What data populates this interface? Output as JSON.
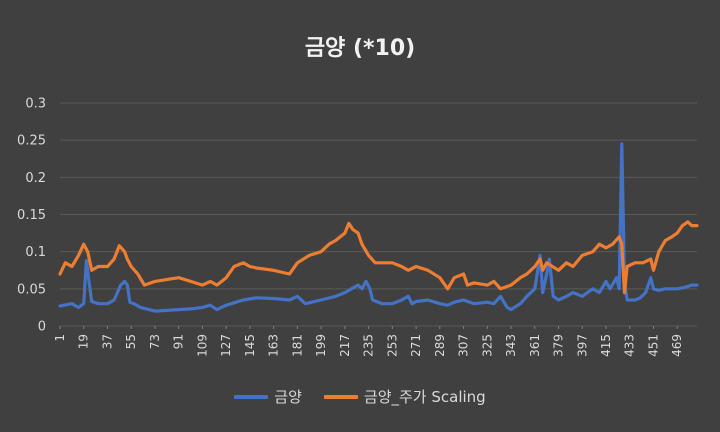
{
  "chart_data": {
    "type": "line",
    "title": "금양 (*10)",
    "xlabel": "",
    "ylabel": "",
    "ylim": [
      0,
      0.3
    ],
    "yticks": [
      "0",
      "0.05",
      "0.1",
      "0.15",
      "0.2",
      "0.25",
      "0.3"
    ],
    "x_range": [
      1,
      484
    ],
    "x_tick_labels": [
      "1",
      "19",
      "37",
      "55",
      "73",
      "91",
      "109",
      "127",
      "145",
      "163",
      "181",
      "199",
      "217",
      "235",
      "253",
      "271",
      "289",
      "307",
      "325",
      "343",
      "361",
      "379",
      "397",
      "415",
      "433",
      "451",
      "469"
    ],
    "grid": true,
    "legend_position": "bottom",
    "series": [
      {
        "name": "금양",
        "color": "#4472C4",
        "points": [
          [
            1,
            0.027
          ],
          [
            10,
            0.03
          ],
          [
            15,
            0.025
          ],
          [
            19,
            0.03
          ],
          [
            21,
            0.088
          ],
          [
            23,
            0.06
          ],
          [
            25,
            0.033
          ],
          [
            30,
            0.03
          ],
          [
            37,
            0.03
          ],
          [
            42,
            0.035
          ],
          [
            47,
            0.055
          ],
          [
            50,
            0.06
          ],
          [
            52,
            0.055
          ],
          [
            54,
            0.032
          ],
          [
            57,
            0.03
          ],
          [
            62,
            0.025
          ],
          [
            73,
            0.02
          ],
          [
            91,
            0.022
          ],
          [
            100,
            0.023
          ],
          [
            109,
            0.025
          ],
          [
            115,
            0.028
          ],
          [
            120,
            0.022
          ],
          [
            127,
            0.028
          ],
          [
            140,
            0.035
          ],
          [
            150,
            0.038
          ],
          [
            163,
            0.037
          ],
          [
            175,
            0.035
          ],
          [
            181,
            0.04
          ],
          [
            187,
            0.03
          ],
          [
            199,
            0.035
          ],
          [
            210,
            0.04
          ],
          [
            217,
            0.045
          ],
          [
            222,
            0.05
          ],
          [
            227,
            0.055
          ],
          [
            230,
            0.05
          ],
          [
            233,
            0.06
          ],
          [
            236,
            0.05
          ],
          [
            238,
            0.035
          ],
          [
            245,
            0.03
          ],
          [
            253,
            0.03
          ],
          [
            260,
            0.035
          ],
          [
            265,
            0.04
          ],
          [
            268,
            0.03
          ],
          [
            271,
            0.033
          ],
          [
            280,
            0.035
          ],
          [
            289,
            0.03
          ],
          [
            295,
            0.028
          ],
          [
            300,
            0.032
          ],
          [
            307,
            0.035
          ],
          [
            315,
            0.03
          ],
          [
            325,
            0.032
          ],
          [
            330,
            0.03
          ],
          [
            335,
            0.04
          ],
          [
            340,
            0.025
          ],
          [
            343,
            0.022
          ],
          [
            350,
            0.03
          ],
          [
            355,
            0.04
          ],
          [
            361,
            0.05
          ],
          [
            365,
            0.095
          ],
          [
            367,
            0.045
          ],
          [
            370,
            0.07
          ],
          [
            372,
            0.09
          ],
          [
            375,
            0.04
          ],
          [
            379,
            0.035
          ],
          [
            385,
            0.04
          ],
          [
            390,
            0.045
          ],
          [
            397,
            0.04
          ],
          [
            405,
            0.05
          ],
          [
            410,
            0.045
          ],
          [
            415,
            0.06
          ],
          [
            418,
            0.05
          ],
          [
            423,
            0.065
          ],
          [
            425,
            0.05
          ],
          [
            427,
            0.245
          ],
          [
            429,
            0.06
          ],
          [
            431,
            0.035
          ],
          [
            437,
            0.035
          ],
          [
            441,
            0.038
          ],
          [
            445,
            0.045
          ],
          [
            449,
            0.065
          ],
          [
            451,
            0.05
          ],
          [
            455,
            0.048
          ],
          [
            460,
            0.05
          ],
          [
            469,
            0.05
          ],
          [
            475,
            0.052
          ],
          [
            480,
            0.055
          ],
          [
            484,
            0.055
          ]
        ]
      },
      {
        "name": "금양_주가 Scaling",
        "color": "#ED7D31",
        "points": [
          [
            1,
            0.07
          ],
          [
            5,
            0.085
          ],
          [
            10,
            0.08
          ],
          [
            15,
            0.095
          ],
          [
            19,
            0.11
          ],
          [
            22,
            0.1
          ],
          [
            25,
            0.075
          ],
          [
            30,
            0.08
          ],
          [
            37,
            0.08
          ],
          [
            42,
            0.09
          ],
          [
            46,
            0.108
          ],
          [
            50,
            0.1
          ],
          [
            52,
            0.09
          ],
          [
            55,
            0.08
          ],
          [
            60,
            0.07
          ],
          [
            65,
            0.055
          ],
          [
            73,
            0.06
          ],
          [
            80,
            0.062
          ],
          [
            91,
            0.065
          ],
          [
            100,
            0.06
          ],
          [
            109,
            0.055
          ],
          [
            115,
            0.06
          ],
          [
            120,
            0.055
          ],
          [
            127,
            0.065
          ],
          [
            133,
            0.08
          ],
          [
            140,
            0.085
          ],
          [
            145,
            0.08
          ],
          [
            150,
            0.078
          ],
          [
            163,
            0.075
          ],
          [
            170,
            0.072
          ],
          [
            175,
            0.07
          ],
          [
            181,
            0.085
          ],
          [
            190,
            0.095
          ],
          [
            199,
            0.1
          ],
          [
            205,
            0.11
          ],
          [
            210,
            0.115
          ],
          [
            217,
            0.125
          ],
          [
            220,
            0.138
          ],
          [
            223,
            0.13
          ],
          [
            227,
            0.125
          ],
          [
            230,
            0.11
          ],
          [
            235,
            0.095
          ],
          [
            240,
            0.085
          ],
          [
            253,
            0.085
          ],
          [
            260,
            0.08
          ],
          [
            265,
            0.075
          ],
          [
            271,
            0.08
          ],
          [
            280,
            0.075
          ],
          [
            289,
            0.065
          ],
          [
            295,
            0.05
          ],
          [
            300,
            0.065
          ],
          [
            307,
            0.07
          ],
          [
            310,
            0.055
          ],
          [
            315,
            0.058
          ],
          [
            325,
            0.055
          ],
          [
            330,
            0.06
          ],
          [
            335,
            0.05
          ],
          [
            343,
            0.055
          ],
          [
            350,
            0.065
          ],
          [
            355,
            0.07
          ],
          [
            361,
            0.08
          ],
          [
            365,
            0.09
          ],
          [
            367,
            0.075
          ],
          [
            370,
            0.085
          ],
          [
            379,
            0.075
          ],
          [
            385,
            0.085
          ],
          [
            390,
            0.08
          ],
          [
            397,
            0.095
          ],
          [
            405,
            0.1
          ],
          [
            410,
            0.11
          ],
          [
            415,
            0.105
          ],
          [
            420,
            0.11
          ],
          [
            425,
            0.12
          ],
          [
            427,
            0.11
          ],
          [
            429,
            0.045
          ],
          [
            431,
            0.08
          ],
          [
            437,
            0.085
          ],
          [
            443,
            0.085
          ],
          [
            449,
            0.09
          ],
          [
            451,
            0.075
          ],
          [
            455,
            0.1
          ],
          [
            460,
            0.115
          ],
          [
            465,
            0.12
          ],
          [
            469,
            0.125
          ],
          [
            473,
            0.135
          ],
          [
            477,
            0.14
          ],
          [
            480,
            0.135
          ],
          [
            484,
            0.135
          ]
        ]
      }
    ]
  }
}
